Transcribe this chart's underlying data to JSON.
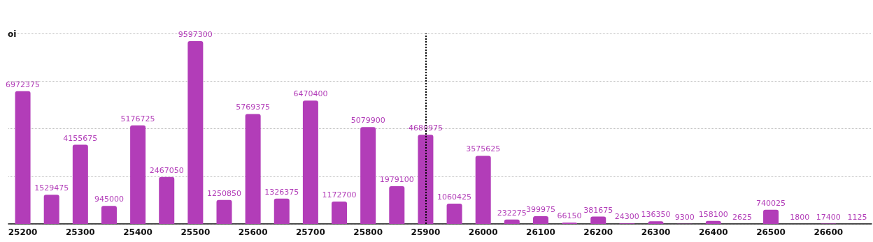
{
  "chart_data": {
    "type": "bar",
    "ylabel": "oi",
    "categories": [
      "25200",
      null,
      "25300",
      null,
      "25400",
      null,
      "25500",
      null,
      "25600",
      null,
      "25700",
      null,
      "25800",
      null,
      "25900",
      null,
      "26000",
      null,
      "26100",
      null,
      "26200",
      null,
      "26300",
      null,
      "26400",
      null,
      "26500",
      null,
      "26600",
      null
    ],
    "values": [
      6972375,
      1529475,
      4155675,
      945000,
      5176725,
      2467050,
      9597300,
      1250850,
      5769375,
      1326375,
      6470400,
      1172700,
      5079900,
      1979100,
      4680975,
      1060425,
      3575625,
      232275,
      399975,
      66150,
      381675,
      24300,
      136350,
      9300,
      158100,
      2625,
      740025,
      1800,
      17400,
      1125
    ],
    "color": "#b23db8",
    "data_labels": true,
    "ylim": [
      0,
      10000000
    ],
    "yticks": [
      {
        "value": 0,
        "label": null
      },
      {
        "value": 2500000,
        "label": null
      },
      {
        "value": 5000000,
        "label": null
      },
      {
        "value": 7500000,
        "label": null
      },
      {
        "value": 10000000,
        "label": null
      }
    ],
    "grid": "y",
    "ref_lines": [
      {
        "axis": "x",
        "value": "25900",
        "color": "#000000",
        "line_style": "dotted"
      }
    ]
  }
}
